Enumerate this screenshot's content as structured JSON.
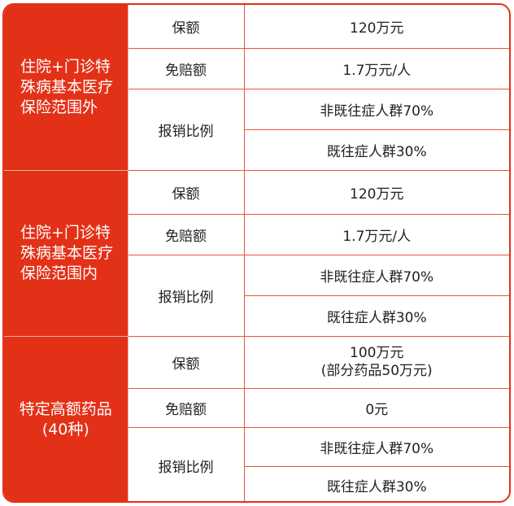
{
  "accent_color": "#e33117",
  "sections": [
    {
      "title": "住院+门诊特殊病基本医疗保险范围外",
      "coverage_label": "保额",
      "coverage_value": "120万元",
      "deductible_label": "免赔额",
      "deductible_value": "1.7万元/人",
      "ratio_label": "报销比例",
      "ratio_values": [
        "非既往症人群70%",
        "既往症人群30%"
      ]
    },
    {
      "title": "住院+门诊特殊病基本医疗保险范围内",
      "coverage_label": "保额",
      "coverage_value": "120万元",
      "deductible_label": "免赔额",
      "deductible_value": "1.7万元/人",
      "ratio_label": "报销比例",
      "ratio_values": [
        "非既往症人群70%",
        "既往症人群30%"
      ]
    },
    {
      "title": "特定高额药品",
      "title_sub": "(40种)",
      "coverage_label": "保额",
      "coverage_value": "100万元",
      "coverage_note": "(部分药品50万元)",
      "deductible_label": "免赔额",
      "deductible_value": "0元",
      "ratio_label": "报销比例",
      "ratio_values": [
        "非既往症人群70%",
        "既往症人群30%"
      ]
    }
  ]
}
